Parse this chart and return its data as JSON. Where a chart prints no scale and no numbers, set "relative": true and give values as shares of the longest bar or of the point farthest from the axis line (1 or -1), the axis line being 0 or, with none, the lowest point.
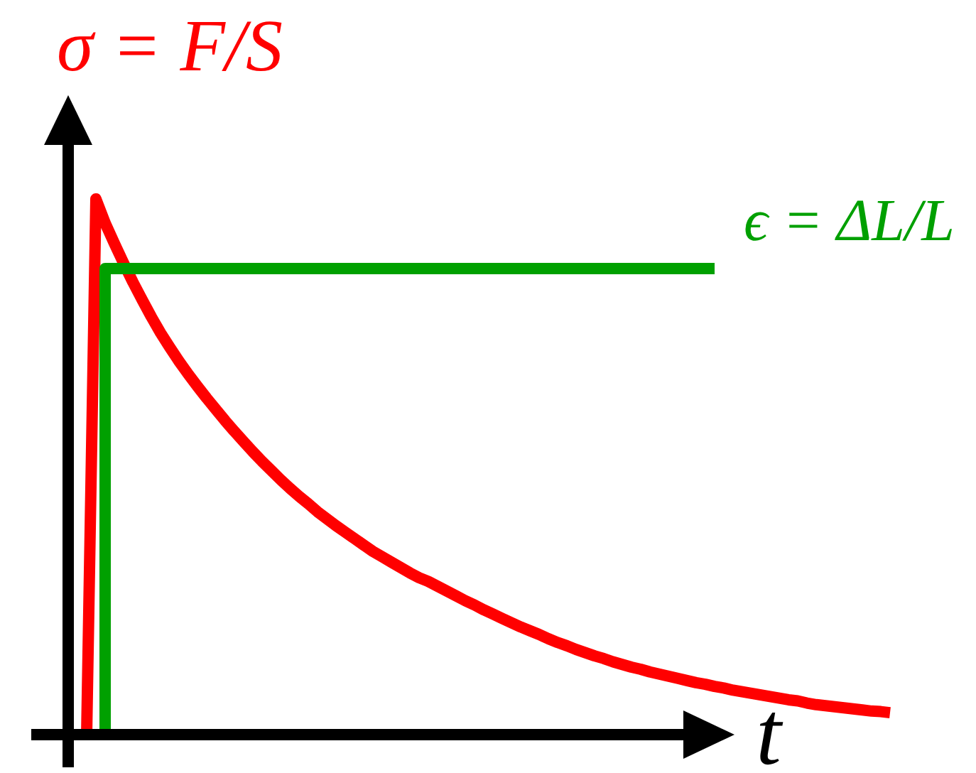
{
  "chart_data": {
    "type": "line",
    "relative": true,
    "xlabel": "t",
    "legend": false,
    "grid": false,
    "line_style": "solid",
    "categories": [
      null,
      null,
      null,
      null,
      null,
      null,
      null,
      null,
      null,
      null,
      null,
      null,
      null,
      null,
      null,
      null,
      null,
      null,
      null,
      null,
      null,
      null,
      null,
      null,
      null,
      null,
      null,
      null,
      null,
      null,
      null,
      null,
      null,
      null,
      null,
      null,
      null,
      null,
      null,
      null,
      null,
      null,
      null,
      null,
      null,
      null,
      null,
      null,
      null,
      null,
      null,
      null,
      null,
      null,
      null,
      null,
      null,
      null,
      null,
      null,
      null,
      null,
      null,
      null,
      null,
      null,
      null,
      null,
      null,
      null,
      null,
      null,
      null,
      null,
      null,
      null,
      null,
      null,
      null,
      null,
      null,
      null,
      null,
      null,
      null,
      null,
      null,
      null,
      null,
      null
    ],
    "series": [
      {
        "name": "σ = F/S",
        "color": "#ff0000",
        "values": [
          null,
          null,
          0,
          1,
          0.955,
          0.917,
          0.88,
          0.845,
          0.812,
          0.78,
          0.75,
          0.723,
          0.697,
          0.673,
          0.65,
          0.628,
          0.607,
          0.586,
          0.566,
          0.547,
          0.528,
          0.51,
          0.493,
          0.476,
          0.46,
          0.445,
          0.431,
          0.416,
          0.403,
          0.39,
          0.378,
          0.366,
          0.354,
          0.342,
          0.332,
          0.322,
          0.312,
          0.302,
          0.293,
          0.286,
          0.277,
          0.268,
          0.259,
          0.25,
          0.242,
          0.233,
          0.225,
          0.217,
          0.209,
          0.201,
          0.194,
          0.187,
          0.179,
          0.172,
          0.166,
          0.159,
          0.153,
          0.147,
          0.142,
          0.136,
          0.131,
          0.126,
          0.122,
          0.117,
          0.113,
          0.109,
          0.105,
          0.101,
          0.097,
          0.094,
          0.09,
          0.087,
          0.083,
          0.08,
          0.077,
          0.074,
          0.071,
          0.068,
          0.065,
          0.063,
          0.059,
          0.056,
          0.054,
          0.052,
          0.05,
          0.048,
          0.046,
          0.044,
          0.043,
          0.041
        ]
      },
      {
        "name": "ϵ = ΔL/L",
        "type": "step",
        "color": "#00a000",
        "values": [
          null,
          null,
          null,
          0,
          0.87,
          0.87,
          0.87,
          0.87,
          0.87,
          0.87,
          0.87,
          0.87,
          0.87,
          0.87,
          0.87,
          0.87,
          0.87,
          0.87,
          0.87,
          0.87,
          0.87,
          0.87,
          0.87,
          0.87,
          0.87,
          0.87,
          0.87,
          0.87,
          0.87,
          0.87,
          0.87,
          0.87,
          0.87,
          0.87,
          0.87,
          0.87,
          0.87,
          0.87,
          0.87,
          0.87,
          0.87,
          0.87,
          0.87,
          0.87,
          0.87,
          0.87,
          0.87,
          0.87,
          0.87,
          0.87,
          0.87,
          0.87,
          0.87,
          0.87,
          0.87,
          0.87,
          0.87,
          0.87,
          0.87,
          0.87,
          0.87,
          0.87,
          0.87,
          0.87,
          0.87,
          0.87,
          0.87,
          0.87,
          0.87,
          0.87,
          0.87,
          null,
          null,
          null,
          null,
          null,
          null,
          null,
          null,
          null,
          null,
          null,
          null,
          null,
          null,
          null,
          null,
          null,
          null,
          null
        ]
      }
    ]
  }
}
